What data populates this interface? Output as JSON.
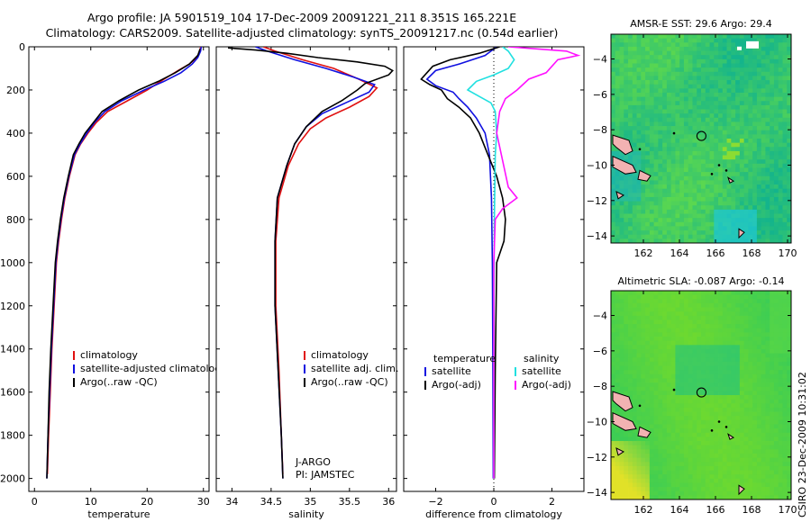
{
  "header": {
    "line1": "Argo profile: JA 5901519_104 17-Dec-2009 20091221_211 8.351S 165.221E",
    "line2": "Climatology: CARS2009. Satellite-adjusted climatology: synTS_20091217.nc (0.54d earlier)"
  },
  "side_label": "CSIRO 23-Dec-2009 10:31:02",
  "colors": {
    "climatology": "#e01010",
    "satellite": "#1010e0",
    "argo": "#000000",
    "satellite_salinity": "#20e0e0",
    "argo_salinity": "#ff10ff",
    "land": "#f2b2b2"
  },
  "chart_data": [
    {
      "id": "temperature",
      "type": "line",
      "xlabel": "temperature",
      "ylabel": "",
      "xlim": [
        -1,
        31
      ],
      "ylim": [
        2060,
        0
      ],
      "xticks": [
        0,
        10,
        20,
        30
      ],
      "yticks": [
        0,
        200,
        400,
        600,
        800,
        1000,
        1200,
        1400,
        1600,
        1800,
        2000
      ],
      "legend": [
        "climatology",
        "satellite-adjusted climatology",
        "Argo(..raw -QC)"
      ],
      "series": [
        {
          "name": "climatology",
          "color": "#e01010",
          "points": [
            [
              29.5,
              0
            ],
            [
              29.4,
              20
            ],
            [
              28.8,
              50
            ],
            [
              27.5,
              80
            ],
            [
              25.5,
              110
            ],
            [
              23,
              150
            ],
            [
              20,
              200
            ],
            [
              16.5,
              250
            ],
            [
              13,
              300
            ],
            [
              11,
              350
            ],
            [
              9.5,
              400
            ],
            [
              8.2,
              450
            ],
            [
              7.2,
              500
            ],
            [
              6.2,
              600
            ],
            [
              5.4,
              700
            ],
            [
              4.8,
              800
            ],
            [
              4.3,
              900
            ],
            [
              3.9,
              1000
            ],
            [
              3.5,
              1200
            ],
            [
              3.1,
              1400
            ],
            [
              2.8,
              1600
            ],
            [
              2.5,
              1800
            ],
            [
              2.3,
              1980
            ]
          ]
        },
        {
          "name": "satellite-adjusted climatology",
          "color": "#1010e0",
          "points": [
            [
              29.6,
              0
            ],
            [
              29.5,
              20
            ],
            [
              29,
              50
            ],
            [
              28,
              80
            ],
            [
              26,
              120
            ],
            [
              23,
              160
            ],
            [
              19.5,
              200
            ],
            [
              15.5,
              250
            ],
            [
              12.5,
              300
            ],
            [
              10.7,
              350
            ],
            [
              9.3,
              400
            ],
            [
              8.1,
              450
            ],
            [
              7.1,
              500
            ],
            [
              6.1,
              600
            ],
            [
              5.3,
              700
            ],
            [
              4.7,
              800
            ],
            [
              4.2,
              900
            ],
            [
              3.8,
              1000
            ],
            [
              3.4,
              1200
            ],
            [
              3,
              1400
            ],
            [
              2.7,
              1600
            ],
            [
              2.4,
              1800
            ],
            [
              2.2,
              2000
            ]
          ]
        },
        {
          "name": "Argo(..raw -QC)",
          "color": "#000000",
          "points": [
            [
              29.4,
              10
            ],
            [
              29,
              40
            ],
            [
              27.5,
              80
            ],
            [
              25,
              120
            ],
            [
              22,
              160
            ],
            [
              18.5,
              200
            ],
            [
              15,
              250
            ],
            [
              12,
              300
            ],
            [
              10.5,
              350
            ],
            [
              9,
              400
            ],
            [
              7.9,
              450
            ],
            [
              6.9,
              500
            ],
            [
              6,
              600
            ],
            [
              5.2,
              700
            ],
            [
              4.6,
              800
            ],
            [
              4.1,
              900
            ],
            [
              3.7,
              1000
            ],
            [
              3.3,
              1200
            ],
            [
              2.9,
              1400
            ],
            [
              2.6,
              1600
            ],
            [
              2.4,
              1800
            ],
            [
              2.2,
              2000
            ]
          ]
        }
      ]
    },
    {
      "id": "salinity",
      "type": "line",
      "xlabel": "salinity",
      "ylabel": "",
      "xlim": [
        33.8,
        36.1
      ],
      "ylim": [
        2060,
        0
      ],
      "xticks": [
        34,
        34.5,
        35,
        35.5,
        36
      ],
      "yticks": [
        0,
        200,
        400,
        600,
        800,
        1000,
        1200,
        1400,
        1600,
        1800,
        2000
      ],
      "legend": [
        "climatology",
        "satellite adj. clim.",
        "Argo(..raw -QC)"
      ],
      "annotation": [
        "J-ARGO",
        "PI: JAMSTEC"
      ],
      "series": [
        {
          "name": "climatology",
          "color": "#e01010",
          "points": [
            [
              34.4,
              0
            ],
            [
              34.55,
              20
            ],
            [
              34.9,
              60
            ],
            [
              35.3,
              100
            ],
            [
              35.62,
              150
            ],
            [
              35.85,
              190
            ],
            [
              35.75,
              230
            ],
            [
              35.5,
              280
            ],
            [
              35.2,
              330
            ],
            [
              35,
              380
            ],
            [
              34.85,
              450
            ],
            [
              34.72,
              550
            ],
            [
              34.6,
              700
            ],
            [
              34.56,
              900
            ],
            [
              34.56,
              1200
            ],
            [
              34.6,
              1500
            ],
            [
              34.63,
              1800
            ],
            [
              34.65,
              1980
            ]
          ]
        },
        {
          "name": "satellite adj. clim.",
          "color": "#1010e0",
          "points": [
            [
              34.3,
              0
            ],
            [
              34.45,
              20
            ],
            [
              34.8,
              60
            ],
            [
              35.2,
              100
            ],
            [
              35.55,
              140
            ],
            [
              35.82,
              175
            ],
            [
              35.75,
              210
            ],
            [
              35.45,
              260
            ],
            [
              35.15,
              310
            ],
            [
              34.95,
              370
            ],
            [
              34.8,
              450
            ],
            [
              34.7,
              550
            ],
            [
              34.58,
              700
            ],
            [
              34.55,
              900
            ],
            [
              34.55,
              1200
            ],
            [
              34.59,
              1500
            ],
            [
              34.63,
              1800
            ],
            [
              34.65,
              2000
            ]
          ]
        },
        {
          "name": "Argo(..raw -QC)",
          "color": "#000000",
          "points": [
            [
              33.95,
              5
            ],
            [
              34.3,
              15
            ],
            [
              34.7,
              30
            ],
            [
              35.1,
              50
            ],
            [
              35.6,
              70
            ],
            [
              35.95,
              90
            ],
            [
              36.05,
              110
            ],
            [
              36,
              130
            ],
            [
              35.7,
              170
            ],
            [
              35.6,
              200
            ],
            [
              35.4,
              250
            ],
            [
              35.15,
              300
            ],
            [
              34.95,
              370
            ],
            [
              34.8,
              450
            ],
            [
              34.7,
              550
            ],
            [
              34.58,
              700
            ],
            [
              34.55,
              900
            ],
            [
              34.55,
              1200
            ],
            [
              34.59,
              1500
            ],
            [
              34.63,
              1800
            ],
            [
              34.65,
              2000
            ]
          ]
        }
      ]
    },
    {
      "id": "difference",
      "type": "line",
      "xlabel": "difference from climatology",
      "ylabel": "",
      "xlim": [
        -3.1,
        3.1
      ],
      "ylim": [
        2060,
        0
      ],
      "xticks": [
        -2,
        0,
        2
      ],
      "yticks": [
        0,
        200,
        400,
        600,
        800,
        1000,
        1200,
        1400,
        1600,
        1800,
        2000
      ],
      "legend_headings": [
        "temperature",
        "salinity"
      ],
      "legend": [
        "satellite",
        "Argo(-adj)",
        "satellite",
        "Argo(-adj)"
      ],
      "series": [
        {
          "name": "satellite",
          "group": "temperature",
          "color": "#1010e0",
          "points": [
            [
              0.1,
              0
            ],
            [
              -0.3,
              40
            ],
            [
              -1.2,
              80
            ],
            [
              -2,
              110
            ],
            [
              -2.3,
              150
            ],
            [
              -2,
              180
            ],
            [
              -1.4,
              210
            ],
            [
              -1.2,
              240
            ],
            [
              -0.9,
              280
            ],
            [
              -0.6,
              330
            ],
            [
              -0.3,
              400
            ],
            [
              -0.15,
              500
            ],
            [
              -0.08,
              700
            ],
            [
              -0.05,
              1000
            ],
            [
              -0.03,
              1500
            ],
            [
              -0.02,
              2000
            ]
          ]
        },
        {
          "name": "Argo(-adj)",
          "group": "temperature",
          "color": "#000000",
          "points": [
            [
              0.2,
              0
            ],
            [
              -0.5,
              30
            ],
            [
              -1.5,
              60
            ],
            [
              -2.1,
              90
            ],
            [
              -2.3,
              120
            ],
            [
              -2.5,
              150
            ],
            [
              -2.2,
              175
            ],
            [
              -1.8,
              200
            ],
            [
              -1.6,
              240
            ],
            [
              -1.2,
              280
            ],
            [
              -0.8,
              330
            ],
            [
              -0.5,
              400
            ],
            [
              -0.2,
              500
            ],
            [
              0.1,
              600
            ],
            [
              0.3,
              700
            ],
            [
              0.4,
              800
            ],
            [
              0.35,
              900
            ],
            [
              0.1,
              1000
            ],
            [
              0.05,
              1500
            ],
            [
              0.02,
              2000
            ]
          ]
        },
        {
          "name": "satellite",
          "group": "salinity",
          "color": "#20e0e0",
          "points": [
            [
              0.3,
              0
            ],
            [
              0.5,
              20
            ],
            [
              0.7,
              60
            ],
            [
              0.5,
              100
            ],
            [
              0,
              130
            ],
            [
              -0.6,
              160
            ],
            [
              -0.9,
              200
            ],
            [
              -0.5,
              230
            ],
            [
              -0.1,
              260
            ],
            [
              0.05,
              300
            ],
            [
              0.1,
              400
            ],
            [
              0.05,
              500
            ],
            [
              0.02,
              800
            ],
            [
              0,
              1200
            ],
            [
              0,
              2000
            ]
          ]
        },
        {
          "name": "Argo(-adj)",
          "group": "salinity",
          "color": "#ff10ff",
          "points": [
            [
              0.5,
              0
            ],
            [
              2.5,
              20
            ],
            [
              2.9,
              40
            ],
            [
              2.2,
              60
            ],
            [
              1.8,
              120
            ],
            [
              1.2,
              150
            ],
            [
              0.8,
              200
            ],
            [
              0.4,
              240
            ],
            [
              0.2,
              300
            ],
            [
              0.1,
              400
            ],
            [
              0.5,
              650
            ],
            [
              0.8,
              700
            ],
            [
              0.3,
              750
            ],
            [
              0.05,
              800
            ],
            [
              0,
              1000
            ],
            [
              0,
              2000
            ]
          ]
        }
      ]
    },
    {
      "id": "sst_map",
      "type": "heatmap",
      "title": "AMSR-E SST: 29.6  Argo: 29.4",
      "xlim": [
        160.2,
        170.2
      ],
      "ylim": [
        -14.4,
        -2.6
      ],
      "xticks": [
        162,
        164,
        166,
        168,
        170
      ],
      "yticks": [
        -4,
        -6,
        -8,
        -10,
        -12,
        -14
      ],
      "marker": [
        165.221,
        -8.351
      ]
    },
    {
      "id": "sla_map",
      "type": "heatmap",
      "title": "Altimetric SLA: -0.087  Argo: -0.14",
      "xlim": [
        160.2,
        170.2
      ],
      "ylim": [
        -14.4,
        -2.6
      ],
      "xticks": [
        162,
        164,
        166,
        168,
        170
      ],
      "yticks": [
        -4,
        -6,
        -8,
        -10,
        -12,
        -14
      ],
      "marker": [
        165.221,
        -8.351
      ]
    }
  ]
}
